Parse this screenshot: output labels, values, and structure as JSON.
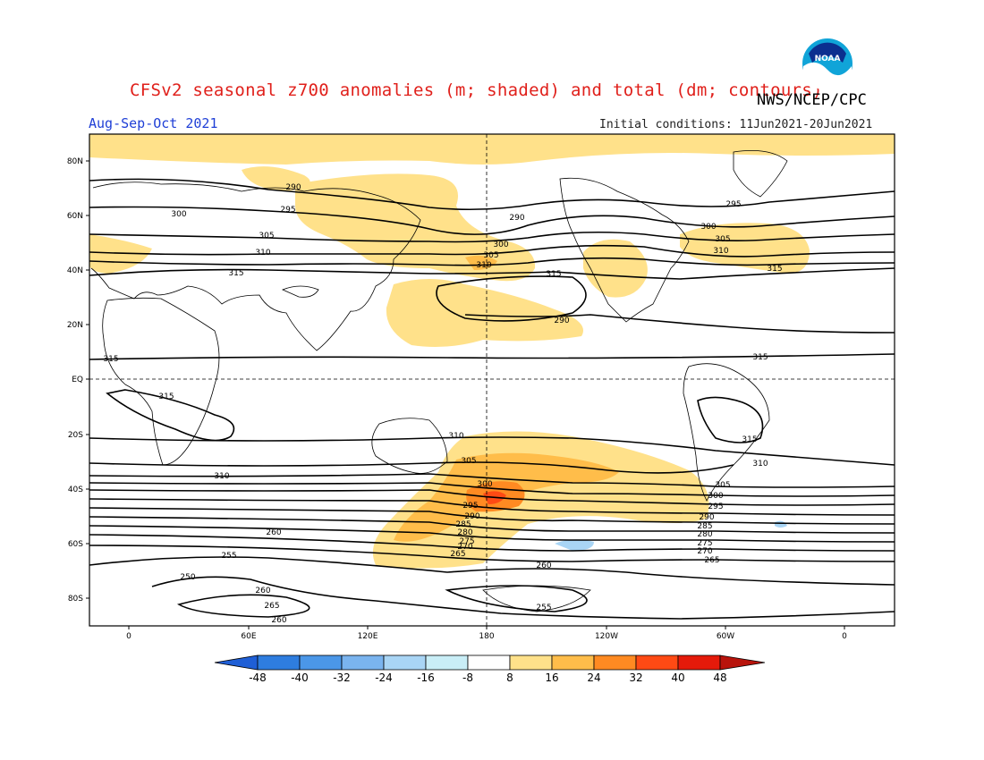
{
  "header": {
    "title": "CFSv2 seasonal z700 anomalies (m; shaded) and total (dm; contours)",
    "agency": "NWS/NCEP/CPC",
    "season": "Aug-Sep-Oct 2021",
    "initial_conditions": "Initial conditions: 11Jun2021-20Jun2021",
    "logo_text": "NOAA"
  },
  "map": {
    "lat_ticks": [
      "80N",
      "60N",
      "40N",
      "20N",
      "EQ",
      "20S",
      "40S",
      "60S",
      "80S"
    ],
    "lon_ticks": [
      "0",
      "60E",
      "120E",
      "180",
      "120W",
      "60W",
      "0"
    ],
    "contour_labels": [
      "290",
      "300",
      "295",
      "305",
      "310",
      "315",
      "290",
      "300",
      "305",
      "310",
      "315",
      "290",
      "295",
      "300",
      "305",
      "310",
      "315",
      "315",
      "315",
      "315",
      "315",
      "310",
      "305",
      "300",
      "295",
      "290",
      "285",
      "280",
      "275",
      "270",
      "265",
      "260",
      "255",
      "250",
      "310",
      "305",
      "300",
      "295",
      "290",
      "285",
      "280",
      "275",
      "270",
      "265",
      "260",
      "255",
      "260",
      "265",
      "260",
      "310"
    ]
  },
  "colorbar": {
    "labels": [
      "-48",
      "-40",
      "-32",
      "-24",
      "-16",
      "-8",
      "8",
      "16",
      "24",
      "32",
      "40",
      "48"
    ],
    "colors": [
      "#1f5fd6",
      "#2e7ddf",
      "#4b97e8",
      "#7ab4ef",
      "#a9d5f5",
      "#c9eef7",
      "#ffffff",
      "#ffe18a",
      "#ffbd4a",
      "#ff8a22",
      "#ff4a14",
      "#e51a0a",
      "#b8140c"
    ]
  }
}
